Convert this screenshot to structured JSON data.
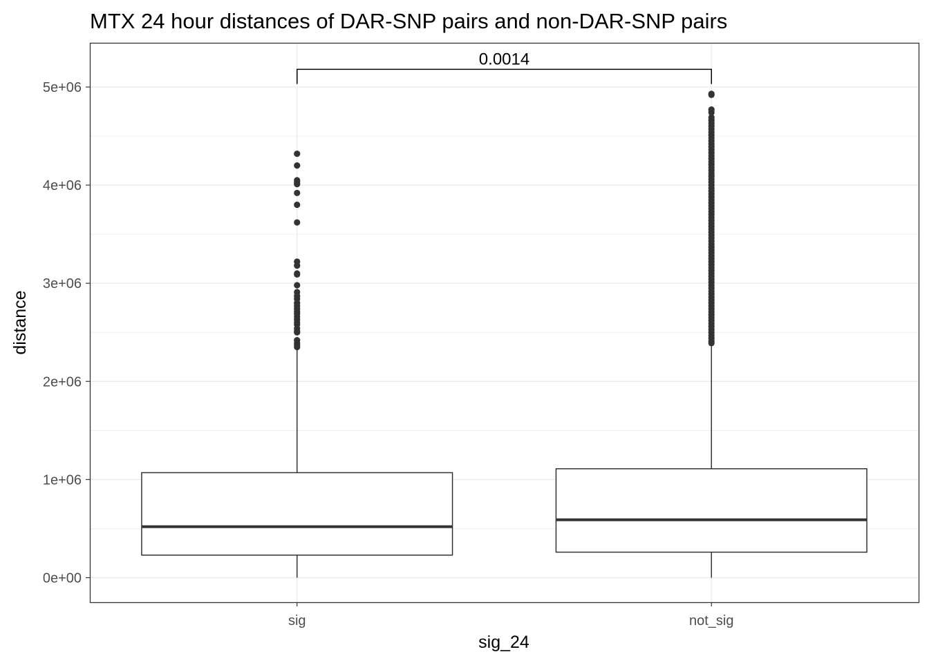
{
  "chart_data": {
    "type": "boxplot",
    "title": "MTX 24 hour distances of DAR-SNP pairs and non-DAR-SNP pairs",
    "xlabel": "sig_24",
    "ylabel": "distance",
    "categories": [
      "sig",
      "not_sig"
    ],
    "ylim": [
      -250000,
      5450000
    ],
    "yticks": [
      {
        "value": 0,
        "label": "0e+00"
      },
      {
        "value": 1000000,
        "label": "1e+06"
      },
      {
        "value": 2000000,
        "label": "2e+06"
      },
      {
        "value": 3000000,
        "label": "3e+06"
      },
      {
        "value": 4000000,
        "label": "4e+06"
      },
      {
        "value": 5000000,
        "label": "5e+06"
      }
    ],
    "minor_yticks": [
      500000,
      1500000,
      2500000,
      3500000,
      4500000
    ],
    "grid": true,
    "boxes": [
      {
        "category": "sig",
        "whisker_low": 0,
        "q1": 230000,
        "median": 520000,
        "q3": 1070000,
        "whisker_high": 2330000,
        "outliers": [
          4320000,
          4200000,
          4050000,
          4030000,
          4010000,
          3920000,
          3800000,
          3620000,
          3220000,
          3180000,
          3100000,
          3090000,
          2980000,
          2910000,
          2870000,
          2840000,
          2800000,
          2770000,
          2740000,
          2710000,
          2690000,
          2660000,
          2630000,
          2600000,
          2580000,
          2540000,
          2510000,
          2500000,
          2420000,
          2390000,
          2370000,
          2350000
        ]
      },
      {
        "category": "not_sig",
        "whisker_low": 0,
        "q1": 260000,
        "median": 590000,
        "q3": 1110000,
        "whisker_high": 2380000,
        "outliers": [
          4930000,
          4920000,
          4770000,
          4740000,
          4690000,
          4660000,
          4630000,
          4600000,
          4570000,
          4540000,
          4510000,
          4480000,
          4450000,
          4420000,
          4390000,
          4360000,
          4330000,
          4300000,
          4270000,
          4240000,
          4210000,
          4180000,
          4150000,
          4120000,
          4090000,
          4060000,
          4030000,
          4000000,
          3970000,
          3940000,
          3910000,
          3880000,
          3850000,
          3820000,
          3790000,
          3760000,
          3730000,
          3700000,
          3670000,
          3640000,
          3610000,
          3580000,
          3550000,
          3520000,
          3490000,
          3460000,
          3430000,
          3400000,
          3370000,
          3340000,
          3310000,
          3280000,
          3250000,
          3220000,
          3190000,
          3160000,
          3130000,
          3100000,
          3070000,
          3040000,
          3010000,
          2980000,
          2950000,
          2920000,
          2890000,
          2860000,
          2830000,
          2800000,
          2770000,
          2740000,
          2710000,
          2680000,
          2650000,
          2620000,
          2590000,
          2560000,
          2530000,
          2500000,
          2470000,
          2440000,
          2410000,
          2390000
        ]
      }
    ],
    "annotation": {
      "label": "0.0014",
      "between": [
        "sig",
        "not_sig"
      ],
      "y_bar": 5180000,
      "y_tip": 5030000
    },
    "colors": {
      "box_stroke": "#333333",
      "outlier_fill": "#333333",
      "grid": "#ebebeb",
      "panel_border": "#333333",
      "tick_label": "#4d4d4d"
    }
  }
}
